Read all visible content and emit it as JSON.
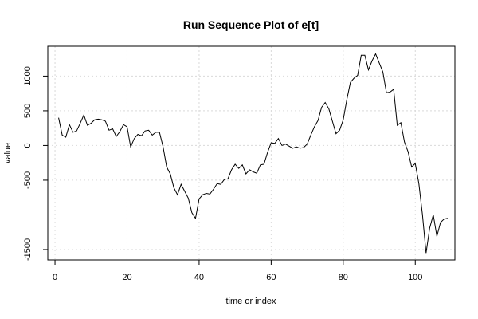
{
  "chart_data": {
    "type": "line",
    "title": "Run Sequence Plot of e[t]",
    "xlabel": "time or index",
    "ylabel": "value",
    "xlim": [
      -2,
      111
    ],
    "ylim": [
      -1650,
      1430
    ],
    "x_ticks": [
      0,
      20,
      40,
      60,
      80,
      100
    ],
    "x_tick_labels": [
      "0",
      "20",
      "40",
      "60",
      "80",
      "100"
    ],
    "y_ticks": [
      -1500,
      -500,
      0,
      500,
      1000
    ],
    "y_tick_labels": [
      "-1500",
      "-500",
      "0",
      "500",
      "1000"
    ],
    "grid": true,
    "grid_x": [
      0,
      20,
      40,
      60,
      80,
      100
    ],
    "grid_y": [
      -1500,
      -1000,
      -500,
      0,
      500,
      1000
    ],
    "series": [
      {
        "color": "#000000",
        "x": [
          1,
          2,
          3,
          4,
          5,
          6,
          7,
          8,
          9,
          10,
          11,
          12,
          13,
          14,
          15,
          16,
          17,
          18,
          19,
          20,
          21,
          22,
          23,
          24,
          25,
          26,
          27,
          28,
          29,
          30,
          31,
          32,
          33,
          34,
          35,
          36,
          37,
          38,
          39,
          40,
          41,
          42,
          43,
          44,
          45,
          46,
          47,
          48,
          49,
          50,
          51,
          52,
          53,
          54,
          55,
          56,
          57,
          58,
          59,
          60,
          61,
          62,
          63,
          64,
          65,
          66,
          67,
          68,
          69,
          70,
          71,
          72,
          73,
          74,
          75,
          76,
          77,
          78,
          79,
          80,
          81,
          82,
          83,
          84,
          85,
          86,
          87,
          88,
          89,
          90,
          91,
          92,
          93,
          94,
          95,
          96,
          97,
          98,
          99,
          100,
          101,
          102,
          103,
          104,
          105,
          106,
          107,
          108,
          109
        ],
        "y": [
          400,
          150,
          120,
          300,
          190,
          210,
          320,
          440,
          290,
          320,
          370,
          380,
          370,
          350,
          220,
          240,
          130,
          200,
          300,
          270,
          -20,
          100,
          160,
          140,
          210,
          220,
          150,
          190,
          190,
          -20,
          -310,
          -410,
          -610,
          -710,
          -560,
          -660,
          -760,
          -970,
          -1050,
          -770,
          -710,
          -690,
          -700,
          -630,
          -550,
          -560,
          -490,
          -480,
          -350,
          -270,
          -330,
          -280,
          -410,
          -350,
          -380,
          -400,
          -280,
          -270,
          -100,
          40,
          30,
          100,
          0,
          20,
          -10,
          -40,
          -20,
          -40,
          -30,
          20,
          150,
          270,
          360,
          550,
          620,
          530,
          350,
          170,
          220,
          370,
          660,
          910,
          970,
          1010,
          1300,
          1300,
          1090,
          1220,
          1320,
          1190,
          1060,
          760,
          770,
          810,
          290,
          330,
          50,
          -90,
          -310,
          -260,
          -550,
          -1000,
          -1550,
          -1190,
          -1000,
          -1310,
          -1110,
          -1060,
          -1050
        ]
      }
    ]
  }
}
